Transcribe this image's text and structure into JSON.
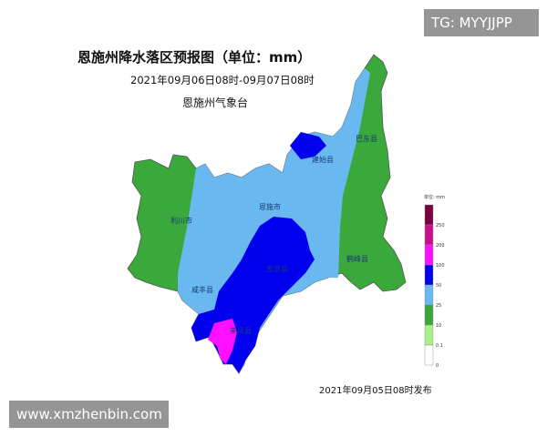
{
  "header": {
    "title": "恩施州降水落区预报图（单位：mm）",
    "period": "2021年09月06日08时-09月07日08时",
    "issuer": "恩施州气象台"
  },
  "footer": {
    "release": "2021年09月05日08时发布"
  },
  "watermarks": {
    "tg": "TG: MYYJJPP",
    "site": "www.xmzhenbin.com"
  },
  "map": {
    "regions": [
      "巴东县",
      "建始县",
      "恩施市",
      "利川市",
      "鹤峰县",
      "宣恩县",
      "咸丰县",
      "来凤县"
    ]
  },
  "legend": {
    "unit": "单位: mm",
    "ticks": [
      "250",
      "200",
      "100",
      "50",
      "25",
      "10",
      "0.1",
      "0"
    ],
    "colors": [
      "#7a0040",
      "#c8108a",
      "#ff10ff",
      "#0000ee",
      "#6ab8f0",
      "#3aa83a",
      "#a8f08a",
      "#ffffff"
    ]
  }
}
